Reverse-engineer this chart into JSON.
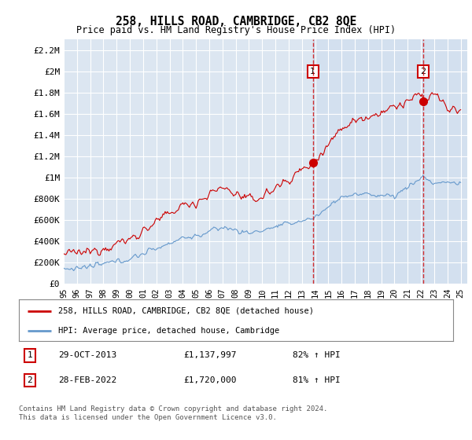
{
  "title": "258, HILLS ROAD, CAMBRIDGE, CB2 8QE",
  "subtitle": "Price paid vs. HM Land Registry's House Price Index (HPI)",
  "background_color": "#ffffff",
  "plot_bg_color": "#dce6f1",
  "plot_bg_color2": "#cddcee",
  "grid_color": "#ffffff",
  "red_line_color": "#cc0000",
  "blue_line_color": "#6699cc",
  "dashed_line_color": "#cc0000",
  "ylim": [
    0,
    2300000
  ],
  "yticks": [
    0,
    200000,
    400000,
    600000,
    800000,
    1000000,
    1200000,
    1400000,
    1600000,
    1800000,
    2000000,
    2200000
  ],
  "ytick_labels": [
    "£0",
    "£200K",
    "£400K",
    "£600K",
    "£800K",
    "£1M",
    "£1.2M",
    "£1.4M",
    "£1.6M",
    "£1.8M",
    "£2M",
    "£2.2M"
  ],
  "xlim_start": 1995.0,
  "xlim_end": 2025.5,
  "marker1_x": 2013.83,
  "marker1_y": 1137997,
  "marker1_label": "1",
  "marker1_date": "29-OCT-2013",
  "marker1_price": "£1,137,997",
  "marker1_hpi": "82% ↑ HPI",
  "marker2_x": 2022.16,
  "marker2_y": 1720000,
  "marker2_label": "2",
  "marker2_date": "28-FEB-2022",
  "marker2_price": "£1,720,000",
  "marker2_hpi": "81% ↑ HPI",
  "legend_line1": "258, HILLS ROAD, CAMBRIDGE, CB2 8QE (detached house)",
  "legend_line2": "HPI: Average price, detached house, Cambridge",
  "footer": "Contains HM Land Registry data © Crown copyright and database right 2024.\nThis data is licensed under the Open Government Licence v3.0."
}
